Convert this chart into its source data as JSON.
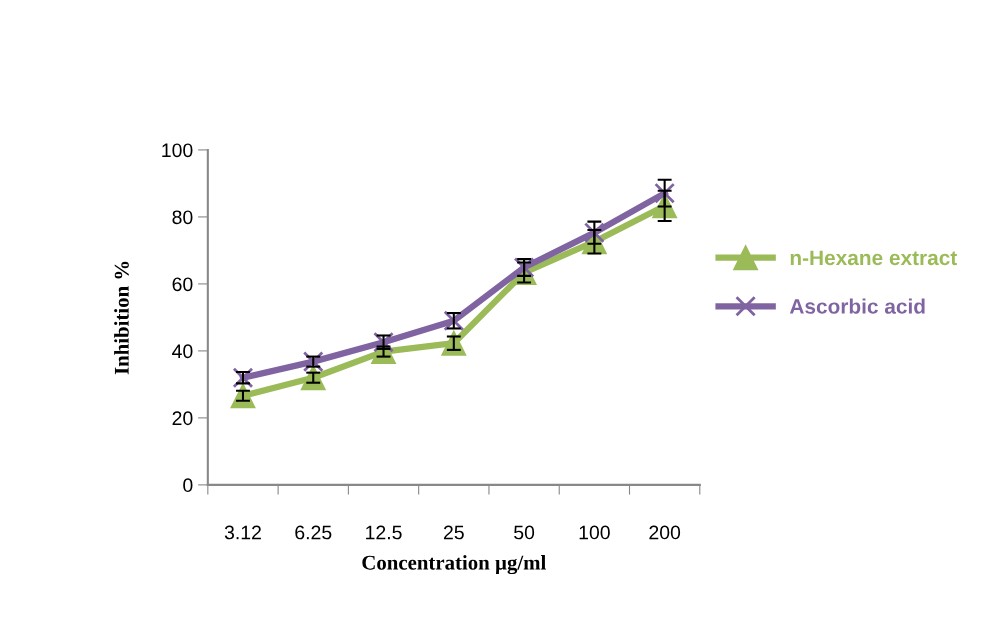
{
  "chart_data": {
    "type": "line",
    "xlabel": "Concentration µg/ml",
    "ylabel": "Inhibition %",
    "categories": [
      "3.12",
      "6.25",
      "12.5",
      "25",
      "50",
      "100",
      "200"
    ],
    "series": [
      {
        "name": "n-Hexane extract",
        "color": "#9bbb59",
        "marker": "triangle",
        "values": [
          26.6,
          32,
          39.8,
          42.3,
          63.4,
          72.6,
          83.3
        ],
        "errors": [
          1.5,
          1.5,
          1.5,
          2,
          3,
          3.5,
          4.5
        ]
      },
      {
        "name": "Ascorbic acid",
        "color": "#8064a2",
        "marker": "cross",
        "values": [
          32,
          36.8,
          42.6,
          49,
          64.9,
          75.3,
          87.1
        ],
        "errors": [
          1.7,
          1.5,
          2,
          2.3,
          2.5,
          3.3,
          4
        ]
      }
    ],
    "ylim": [
      0,
      100
    ],
    "yticks": [
      0,
      20,
      40,
      60,
      80,
      100
    ],
    "grid": false,
    "legend": "right",
    "line_style": "solid"
  }
}
